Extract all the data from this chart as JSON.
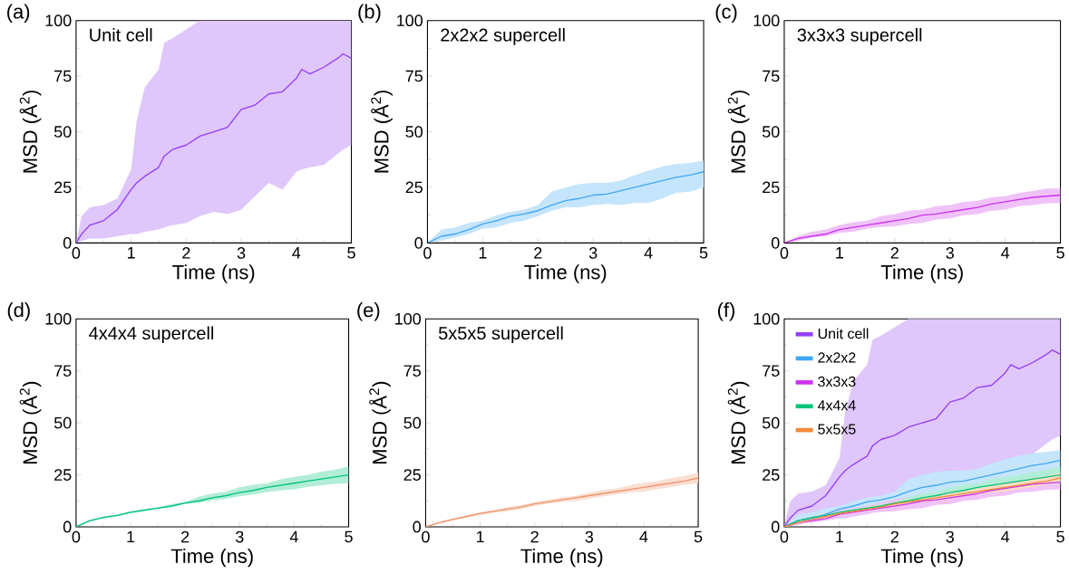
{
  "chart_data": [
    {
      "type": "line",
      "title": "(a)",
      "xlabel": "Time (ns)",
      "ylabel": "MSD (Å$^{2}$)",
      "annotations": [
        "Unit cell"
      ],
      "xlim": [
        0,
        5
      ],
      "ylim": [
        0,
        100
      ],
      "xticks": [
        0,
        1,
        2,
        3,
        4,
        5
      ],
      "yticks": [
        0,
        25,
        50,
        75,
        100
      ],
      "grid": false,
      "x": [
        0,
        0.1,
        0.25,
        0.5,
        0.75,
        1.0,
        1.1,
        1.25,
        1.5,
        1.6,
        1.75,
        2,
        2.25,
        2.5,
        2.75,
        3,
        3.25,
        3.5,
        3.75,
        4,
        4.1,
        4.25,
        4.5,
        4.75,
        4.85,
        5
      ],
      "series": [
        {
          "color": "#9340f2",
          "values": [
            0,
            4,
            8,
            10,
            15,
            24,
            27,
            30,
            34,
            39,
            42,
            44,
            48,
            50,
            52,
            60,
            62,
            67,
            68,
            74,
            78,
            76,
            79,
            83,
            85,
            83
          ],
          "lower": [
            0,
            1,
            2,
            2,
            3,
            4,
            4,
            5,
            6,
            7,
            8,
            9,
            12,
            14,
            13,
            15,
            21,
            27,
            24,
            32,
            33,
            34,
            35,
            40,
            42,
            44
          ],
          "upper": [
            0,
            12,
            16,
            17,
            20,
            33,
            55,
            70,
            78,
            90,
            92,
            96,
            100,
            100,
            100,
            100,
            100,
            100,
            100,
            100,
            100,
            100,
            100,
            100,
            100,
            100
          ]
        }
      ]
    },
    {
      "type": "line",
      "title": "(b)",
      "xlabel": "Time (ns)",
      "ylabel": "MSD (Å$^{2}$)",
      "annotations": [
        "2x2x2 supercell"
      ],
      "xlim": [
        0,
        5
      ],
      "ylim": [
        0,
        100
      ],
      "xticks": [
        0,
        1,
        2,
        3,
        4,
        5
      ],
      "yticks": [
        0,
        25,
        50,
        75,
        100
      ],
      "grid": false,
      "x": [
        0,
        0.25,
        0.5,
        0.75,
        1,
        1.25,
        1.5,
        1.75,
        2,
        2.25,
        2.5,
        2.75,
        3,
        3.25,
        3.5,
        3.75,
        4,
        4.25,
        4.5,
        4.75,
        5
      ],
      "series": [
        {
          "color": "#3ea8f4",
          "values": [
            0,
            3,
            4,
            6,
            8.5,
            10,
            12,
            13,
            14.5,
            17,
            19,
            20,
            21.5,
            22,
            23.5,
            25,
            26.5,
            28,
            29.5,
            30.5,
            32
          ],
          "lower": [
            0,
            1,
            2.5,
            4,
            6.5,
            7,
            9,
            10,
            12,
            14.5,
            16,
            16,
            17,
            17.5,
            17,
            18,
            18,
            20,
            22.5,
            23,
            25
          ],
          "upper": [
            0,
            6,
            7,
            9,
            10,
            12.5,
            14,
            15,
            17,
            23,
            25,
            26.5,
            27,
            27,
            28,
            30.5,
            32.5,
            34.3,
            35.5,
            36,
            37
          ]
        }
      ]
    },
    {
      "type": "line",
      "title": "(c)",
      "xlabel": "Time (ns)",
      "ylabel": "MSD (Å$^{2}$)",
      "annotations": [
        "3x3x3 supercell"
      ],
      "xlim": [
        0,
        5
      ],
      "ylim": [
        0,
        100
      ],
      "xticks": [
        0,
        1,
        2,
        3,
        4,
        5
      ],
      "yticks": [
        0,
        25,
        50,
        75,
        100
      ],
      "grid": false,
      "x": [
        0,
        0.25,
        0.5,
        0.75,
        1,
        1.25,
        1.5,
        1.75,
        2,
        2.25,
        2.5,
        2.75,
        3,
        3.25,
        3.5,
        3.75,
        4,
        4.25,
        4.5,
        4.75,
        5
      ],
      "series": [
        {
          "color": "#cc33ee",
          "values": [
            0,
            2,
            3,
            4,
            6,
            7,
            8,
            9,
            10,
            11,
            12.5,
            13,
            14,
            15,
            16,
            17.5,
            18.5,
            19.5,
            20.5,
            21,
            21.5
          ],
          "lower": [
            0,
            1,
            2.5,
            3,
            4.5,
            5,
            6.5,
            7.2,
            7.5,
            8.5,
            9,
            10.5,
            11,
            12.5,
            13,
            14.5,
            15,
            16.5,
            17,
            17.8,
            18
          ],
          "upper": [
            0,
            3,
            5,
            6,
            8,
            9.3,
            10,
            12,
            13,
            14.5,
            15,
            16.5,
            17,
            18.5,
            19,
            20.5,
            21,
            22.5,
            23.3,
            24.5,
            24.5
          ]
        }
      ]
    },
    {
      "type": "line",
      "title": "(d)",
      "xlabel": "Time (ns)",
      "ylabel": "MSD (Å$^{2}$)",
      "annotations": [
        "4x4x4 supercell"
      ],
      "xlim": [
        0,
        5
      ],
      "ylim": [
        0,
        100
      ],
      "xticks": [
        0,
        1,
        2,
        3,
        4,
        5
      ],
      "yticks": [
        0,
        25,
        50,
        75,
        100
      ],
      "grid": false,
      "x": [
        0,
        0.25,
        0.5,
        0.75,
        1,
        1.25,
        1.5,
        1.75,
        2,
        2.25,
        2.5,
        2.75,
        3,
        3.25,
        3.5,
        3.75,
        4,
        4.25,
        4.5,
        4.75,
        5
      ],
      "series": [
        {
          "color": "#00c47a",
          "values": [
            0,
            3,
            4.5,
            5.5,
            7,
            8,
            9,
            10,
            11.5,
            12.5,
            14,
            15,
            16.5,
            17.5,
            19,
            20,
            21,
            22,
            23,
            24,
            25
          ],
          "lower": [
            0,
            2.5,
            4,
            5,
            6.5,
            7.5,
            8.7,
            9.5,
            11,
            11.5,
            12.7,
            13.5,
            14.7,
            15.5,
            16.7,
            17.5,
            18,
            19.2,
            20,
            20.7,
            21
          ],
          "upper": [
            0,
            3,
            5,
            6,
            7.5,
            8.7,
            9.5,
            11,
            12,
            14.5,
            16,
            17,
            19,
            20.2,
            21,
            22.8,
            24,
            25,
            26.5,
            27.5,
            29
          ]
        }
      ]
    },
    {
      "type": "line",
      "title": "(e)",
      "xlabel": "Time (ns)",
      "ylabel": "MSD (Å$^{2}$)",
      "annotations": [
        "5x5x5 supercell"
      ],
      "xlim": [
        0,
        5
      ],
      "ylim": [
        0,
        100
      ],
      "xticks": [
        0,
        1,
        2,
        3,
        4,
        5
      ],
      "yticks": [
        0,
        25,
        50,
        75,
        100
      ],
      "grid": false,
      "x": [
        0,
        0.25,
        0.5,
        0.75,
        1,
        1.25,
        1.5,
        1.75,
        2,
        2.25,
        2.5,
        2.75,
        3,
        3.25,
        3.5,
        3.75,
        4,
        4.25,
        4.5,
        4.75,
        5
      ],
      "series": [
        {
          "color": "#f0936a",
          "values": [
            0,
            2,
            3.5,
            5,
            6.5,
            7.5,
            8.5,
            9.5,
            11,
            12,
            13,
            14,
            15,
            16,
            17,
            18,
            19,
            20,
            21,
            22,
            23.5
          ],
          "lower": [
            0,
            1.5,
            3.2,
            4.5,
            5.5,
            6.7,
            7.5,
            8.5,
            10,
            11.2,
            12,
            12.5,
            13.5,
            14.7,
            15.5,
            16.5,
            17,
            18.2,
            19,
            20.2,
            21
          ],
          "upper": [
            0,
            2.5,
            4.2,
            5.5,
            7,
            8,
            9.5,
            10.5,
            12,
            13,
            14.2,
            15,
            16.5,
            17.7,
            18.5,
            20,
            21.2,
            22,
            23.5,
            24.5,
            26
          ]
        }
      ]
    },
    {
      "type": "line",
      "title": "(f)",
      "xlabel": "Time (ns)",
      "ylabel": "MSD (Å$^{2}$)",
      "xlim": [
        0,
        5
      ],
      "ylim": [
        0,
        100
      ],
      "xticks": [
        0,
        1,
        2,
        3,
        4,
        5
      ],
      "yticks": [
        0,
        25,
        50,
        75,
        100
      ],
      "grid": false,
      "legend": "top left",
      "series": [
        {
          "name": "Unit cell",
          "color": "#9340f2",
          "x": [
            0,
            0.1,
            0.25,
            0.5,
            0.75,
            1.0,
            1.1,
            1.25,
            1.5,
            1.6,
            1.75,
            2,
            2.25,
            2.5,
            2.75,
            3,
            3.25,
            3.5,
            3.75,
            4,
            4.1,
            4.25,
            4.5,
            4.75,
            4.85,
            5
          ],
          "values": [
            0,
            4,
            8,
            10,
            15,
            24,
            27,
            30,
            34,
            39,
            42,
            44,
            48,
            50,
            52,
            60,
            62,
            67,
            68,
            74,
            78,
            76,
            79,
            83,
            85,
            83
          ],
          "lower": [
            0,
            1,
            2,
            2,
            3,
            4,
            4,
            5,
            6,
            7,
            8,
            9,
            12,
            14,
            13,
            15,
            21,
            27,
            24,
            32,
            33,
            34,
            35,
            40,
            42,
            44
          ],
          "upper": [
            0,
            12,
            16,
            17,
            20,
            33,
            55,
            70,
            78,
            90,
            92,
            96,
            100,
            100,
            100,
            100,
            100,
            100,
            100,
            100,
            100,
            100,
            100,
            100,
            100,
            100
          ]
        },
        {
          "name": "2x2x2",
          "color": "#3ea8f4",
          "x": [
            0,
            0.25,
            0.5,
            0.75,
            1,
            1.25,
            1.5,
            1.75,
            2,
            2.25,
            2.5,
            2.75,
            3,
            3.25,
            3.5,
            3.75,
            4,
            4.25,
            4.5,
            4.75,
            5
          ],
          "values": [
            0,
            3,
            4,
            6,
            8.5,
            10,
            12,
            13,
            14.5,
            17,
            19,
            20,
            21.5,
            22,
            23.5,
            25,
            26.5,
            28,
            29.5,
            30.5,
            32
          ],
          "lower": [
            0,
            1,
            2.5,
            4,
            6.5,
            7,
            9,
            10,
            12,
            14.5,
            16,
            16,
            17,
            17.5,
            17,
            18,
            18,
            20,
            22.5,
            23,
            25
          ],
          "upper": [
            0,
            6,
            7,
            9,
            10,
            12.5,
            14,
            15,
            17,
            23,
            25,
            26.5,
            27,
            27,
            28,
            30.5,
            32.5,
            34.3,
            35.5,
            36,
            37
          ]
        },
        {
          "name": "3x3x3",
          "color": "#cc33ee",
          "x": [
            0,
            0.25,
            0.5,
            0.75,
            1,
            1.25,
            1.5,
            1.75,
            2,
            2.25,
            2.5,
            2.75,
            3,
            3.25,
            3.5,
            3.75,
            4,
            4.25,
            4.5,
            4.75,
            5
          ],
          "values": [
            0,
            2,
            3,
            4,
            6,
            7,
            8,
            9,
            10,
            11,
            12.5,
            13,
            14,
            15,
            16,
            17.5,
            18.5,
            19.5,
            20.5,
            21,
            21.5
          ],
          "lower": [
            0,
            1,
            2.5,
            3,
            4.5,
            5,
            6.5,
            7.2,
            7.5,
            8.5,
            9,
            10.5,
            11,
            12.5,
            13,
            14.5,
            15,
            16.5,
            17,
            17.8,
            18
          ],
          "upper": [
            0,
            3,
            5,
            6,
            8,
            9.3,
            10,
            12,
            13,
            14.5,
            15,
            16.5,
            17,
            18.5,
            19,
            20.5,
            21,
            22.5,
            23.3,
            24.5,
            24.5
          ]
        },
        {
          "name": "4x4x4",
          "color": "#00c47a",
          "x": [
            0,
            0.25,
            0.5,
            0.75,
            1,
            1.25,
            1.5,
            1.75,
            2,
            2.25,
            2.5,
            2.75,
            3,
            3.25,
            3.5,
            3.75,
            4,
            4.25,
            4.5,
            4.75,
            5
          ],
          "values": [
            0,
            3,
            4.5,
            5.5,
            7,
            8,
            9,
            10,
            11.5,
            12.5,
            14,
            15,
            16.5,
            17.5,
            19,
            20,
            21,
            22,
            23,
            24,
            25
          ],
          "lower": [
            0,
            2.5,
            4,
            5,
            6.5,
            7.5,
            8.7,
            9.5,
            11,
            11.5,
            12.7,
            13.5,
            14.7,
            15.5,
            16.7,
            17.5,
            18,
            19.2,
            20,
            20.7,
            21
          ],
          "upper": [
            0,
            3,
            5,
            6,
            7.5,
            8.7,
            9.5,
            11,
            12,
            14.5,
            16,
            17,
            19,
            20.2,
            21,
            22.8,
            24,
            25,
            26.5,
            27.5,
            29
          ]
        },
        {
          "name": "5x5x5",
          "color": "#f28a3a",
          "x": [
            0,
            0.25,
            0.5,
            0.75,
            1,
            1.25,
            1.5,
            1.75,
            2,
            2.25,
            2.5,
            2.75,
            3,
            3.25,
            3.5,
            3.75,
            4,
            4.25,
            4.5,
            4.75,
            5
          ],
          "values": [
            0,
            2,
            3.5,
            5,
            6.5,
            7.5,
            8.5,
            9.5,
            11,
            12,
            13,
            14,
            15,
            16,
            17,
            18,
            19,
            20,
            21,
            22,
            23.5
          ],
          "lower": [
            0,
            1.5,
            3.2,
            4.5,
            5.5,
            6.7,
            7.5,
            8.5,
            10,
            11.2,
            12,
            12.5,
            13.5,
            14.7,
            15.5,
            16.5,
            17,
            18.2,
            19,
            20.2,
            21
          ],
          "upper": [
            0,
            2.5,
            4.2,
            5.5,
            7,
            8,
            9.5,
            10.5,
            12,
            13,
            14.2,
            15,
            16.5,
            17.7,
            18.5,
            20,
            21.2,
            22,
            23.5,
            24.5,
            26
          ]
        }
      ]
    }
  ]
}
